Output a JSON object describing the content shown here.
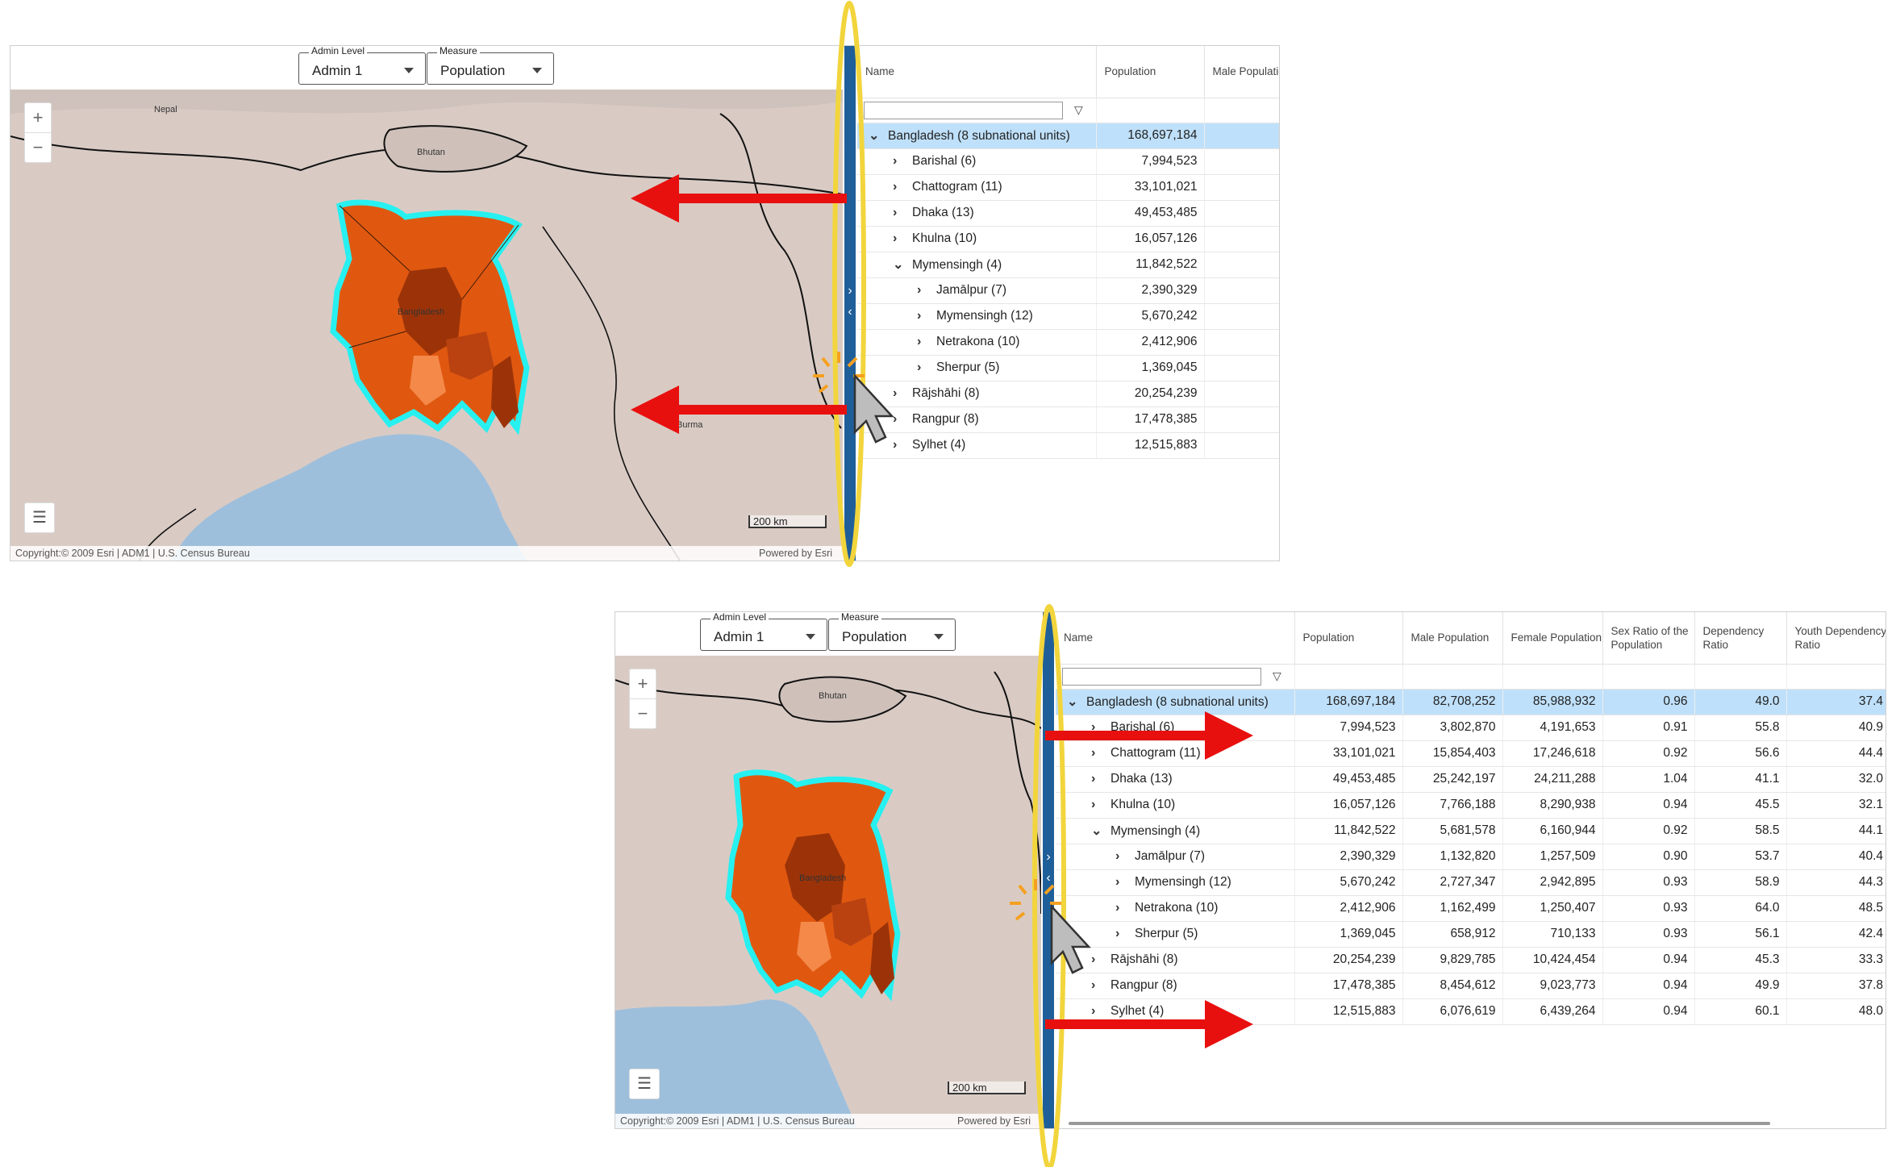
{
  "controls": {
    "admin_level": {
      "label": "Admin Level",
      "value": "Admin 1"
    },
    "measure": {
      "label": "Measure",
      "value": "Population"
    }
  },
  "map": {
    "labels": {
      "nepal": "Nepal",
      "bhutan": "Bhutan",
      "bangladesh": "Bangladesh",
      "burma": "Burma"
    },
    "zoom_in": "+",
    "zoom_out": "−",
    "legend_icon": "list-icon",
    "scale_label": "200 km",
    "copyright": "Copyright:© 2009 Esri | ADM1 | U.S. Census Bureau",
    "powered_by": "Powered by Esri"
  },
  "splitter": {
    "expand_glyph": "›",
    "collapse_glyph": "‹"
  },
  "grid": {
    "columns": [
      "Name",
      "Population",
      "Male Population",
      "Female Population",
      "Sex Ratio of the Population",
      "Dependency Ratio",
      "Youth Dependency Ratio"
    ],
    "filter_icon": "▽",
    "rows": [
      {
        "name": "Bangladesh (8 subnational units)",
        "chevron": "⌄",
        "indent": 0,
        "selected": true,
        "pop": "168,697,184",
        "male": "82,708,252",
        "female": "85,988,932",
        "sex": "0.96",
        "dep": "49.0",
        "youth": "37.4"
      },
      {
        "name": "Barishal (6)",
        "chevron": "›",
        "indent": 1,
        "pop": "7,994,523",
        "male": "3,802,870",
        "female": "4,191,653",
        "sex": "0.91",
        "dep": "55.8",
        "youth": "40.9"
      },
      {
        "name": "Chattogram (11)",
        "chevron": "›",
        "indent": 1,
        "pop": "33,101,021",
        "male": "15,854,403",
        "female": "17,246,618",
        "sex": "0.92",
        "dep": "56.6",
        "youth": "44.4"
      },
      {
        "name": "Dhaka (13)",
        "chevron": "›",
        "indent": 1,
        "pop": "49,453,485",
        "male": "25,242,197",
        "female": "24,211,288",
        "sex": "1.04",
        "dep": "41.1",
        "youth": "32.0"
      },
      {
        "name": "Khulna (10)",
        "chevron": "›",
        "indent": 1,
        "pop": "16,057,126",
        "male": "7,766,188",
        "female": "8,290,938",
        "sex": "0.94",
        "dep": "45.5",
        "youth": "32.1"
      },
      {
        "name": "Mymensingh (4)",
        "chevron": "⌄",
        "indent": 1,
        "pop": "11,842,522",
        "male": "5,681,578",
        "female": "6,160,944",
        "sex": "0.92",
        "dep": "58.5",
        "youth": "44.1"
      },
      {
        "name": "Jamālpur (7)",
        "chevron": "›",
        "indent": 2,
        "pop": "2,390,329",
        "male": "1,132,820",
        "female": "1,257,509",
        "sex": "0.90",
        "dep": "53.7",
        "youth": "40.4"
      },
      {
        "name": "Mymensingh (12)",
        "chevron": "›",
        "indent": 2,
        "pop": "5,670,242",
        "male": "2,727,347",
        "female": "2,942,895",
        "sex": "0.93",
        "dep": "58.9",
        "youth": "44.3"
      },
      {
        "name": "Netrakona (10)",
        "chevron": "›",
        "indent": 2,
        "pop": "2,412,906",
        "male": "1,162,499",
        "female": "1,250,407",
        "sex": "0.93",
        "dep": "64.0",
        "youth": "48.5"
      },
      {
        "name": "Sherpur (5)",
        "chevron": "›",
        "indent": 2,
        "pop": "1,369,045",
        "male": "658,912",
        "female": "710,133",
        "sex": "0.93",
        "dep": "56.1",
        "youth": "42.4"
      },
      {
        "name": "Rājshāhi (8)",
        "chevron": "›",
        "indent": 1,
        "pop": "20,254,239",
        "male": "9,829,785",
        "female": "10,424,454",
        "sex": "0.94",
        "dep": "45.3",
        "youth": "33.3"
      },
      {
        "name": "Rangpur (8)",
        "chevron": "›",
        "indent": 1,
        "pop": "17,478,385",
        "male": "8,454,612",
        "female": "9,023,773",
        "sex": "0.94",
        "dep": "49.9",
        "youth": "37.8"
      },
      {
        "name": "Sylhet (4)",
        "chevron": "›",
        "indent": 1,
        "pop": "12,515,883",
        "male": "6,076,619",
        "female": "6,439,264",
        "sex": "0.94",
        "dep": "60.1",
        "youth": "48.0"
      }
    ]
  },
  "colors": {
    "splitter": "#1f5f99",
    "selected_row": "#bfe0fa",
    "highlight_ellipse": "#f2d53c",
    "arrow": "#e8100f",
    "region_dark": "#9c3308",
    "region_mid": "#e05810",
    "region_light": "#f4894a",
    "border_highlight": "#27f0f0",
    "sea": "#9ebfdc",
    "land": "#d8c8c2"
  }
}
